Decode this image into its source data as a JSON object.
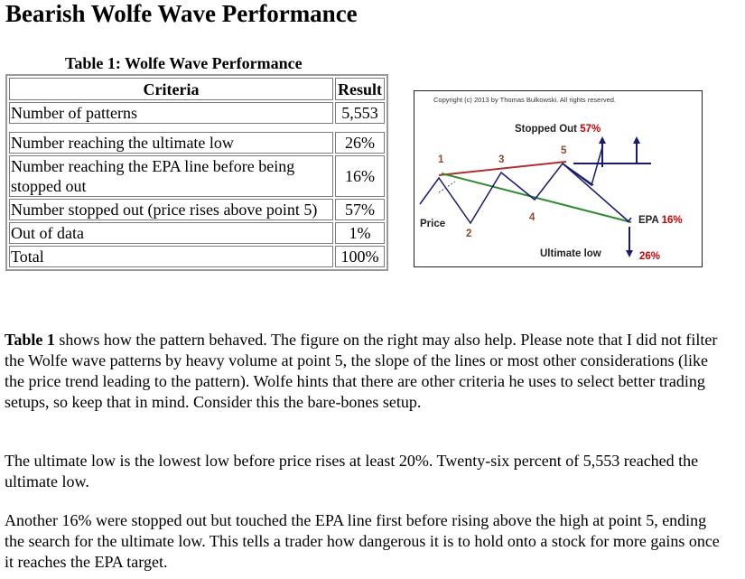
{
  "page": {
    "title": "Bearish Wolfe Wave Performance",
    "table_caption": "Table 1: Wolfe Wave Performance"
  },
  "table": {
    "headers": [
      "Criteria",
      "Result"
    ],
    "rows": [
      {
        "criteria": "Number of patterns",
        "result": "5,553"
      },
      {
        "criteria": "Number reaching the ultimate low",
        "result": "26%"
      },
      {
        "criteria": "Number reaching the EPA line before being stopped out",
        "result": "16%"
      },
      {
        "criteria": "Number stopped out (price rises above point 5)",
        "result": "57%"
      },
      {
        "criteria": "Out of data",
        "result": "1%"
      },
      {
        "criteria": "Total",
        "result": "100%"
      }
    ]
  },
  "figure": {
    "copyright": "Copyright (c) 2013 by Thomas Bulkowski. All rights reserved.",
    "points": [
      "1",
      "2",
      "3",
      "4",
      "5"
    ],
    "labels": {
      "price": "Price",
      "stopped_out": "Stopped Out",
      "stopped_out_pct": "57%",
      "epa": "EPA",
      "epa_pct": "16%",
      "ultimate_low": "Ultimate low",
      "ultimate_low_pct": "26%"
    },
    "colors": {
      "price_line": "#1a1a6e",
      "upper_line": "#b03030",
      "lower_line": "#2e8b2e"
    }
  },
  "paragraphs": {
    "p1_bold": "Table 1",
    "p1": " shows how the pattern behaved. The figure on the right may also help. Please note that I did not filter the Wolfe wave patterns by heavy volume at point 5, the slope of the lines or most other considerations (like the price trend leading to the pattern). Wolfe hints that there are other criteria he uses to select better trading setups, so keep that in mind. Consider this the bare-bones setup.",
    "p2": "The ultimate low is the lowest low before price rises at least 20%. Twenty-six percent of 5,553 reached the ultimate low.",
    "p3": "Another 16% were stopped out but touched the EPA line first before rising above the high at point 5, ending the search for the ultimate low. This tells a trader how dangerous it is to hold onto a stock for more gains once it reaches the EPA target."
  }
}
